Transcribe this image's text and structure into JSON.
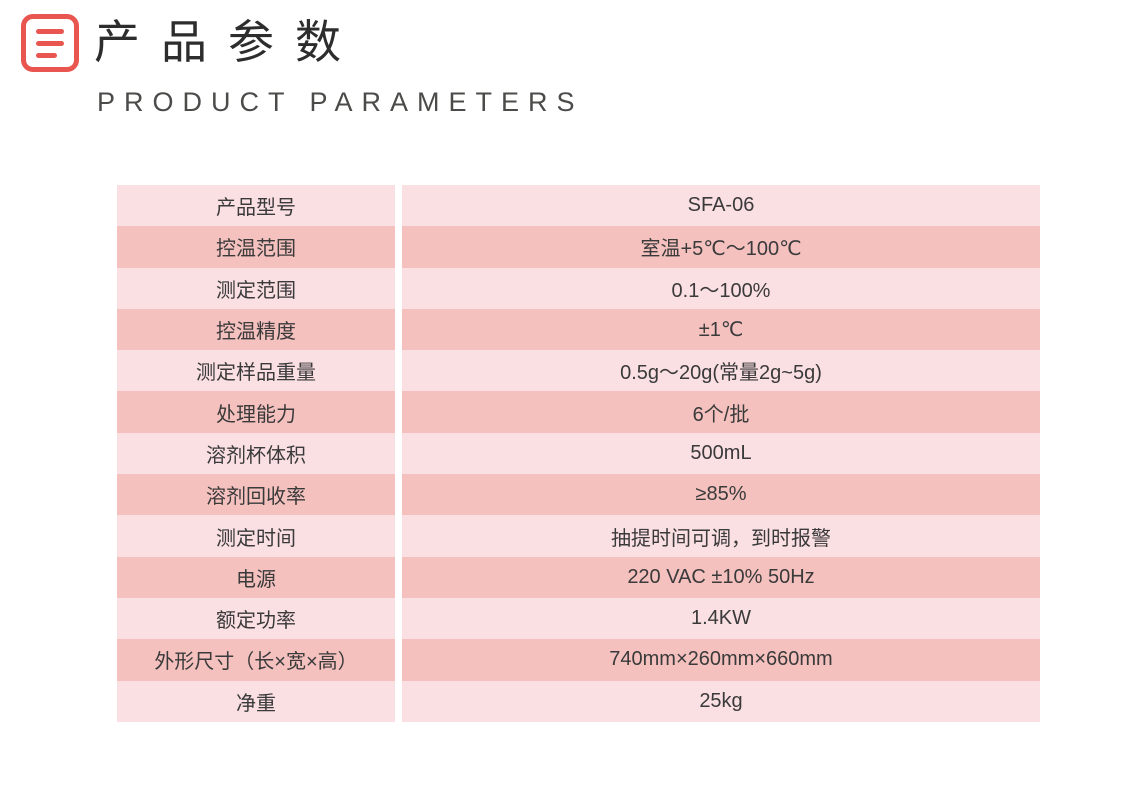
{
  "header": {
    "title": "产品参数",
    "subtitle": "PRODUCT PARAMETERS",
    "icon": "document-lines-icon"
  },
  "colors": {
    "accent_red": "#e8564f",
    "row_light": "#fadfe3",
    "row_dark": "#f4c1bf",
    "title_text": "#2d2d2d",
    "subtitle_text": "#4b4b49",
    "table_text": "#3a3a3a"
  },
  "table": {
    "rows": [
      {
        "label": "产品型号",
        "value": "SFA-06"
      },
      {
        "label": "控温范围",
        "value": "室温+5℃～100℃"
      },
      {
        "label": "测定范围",
        "value": "0.1～100%"
      },
      {
        "label": "控温精度",
        "value": "±1℃"
      },
      {
        "label": "测定样品重量",
        "value": "0.5g～20g(常量2g~5g)"
      },
      {
        "label": "处理能力",
        "value": "6个/批"
      },
      {
        "label": "溶剂杯体积",
        "value": "500mL"
      },
      {
        "label": "溶剂回收率",
        "value": "≥85%"
      },
      {
        "label": "测定时间",
        "value": "抽提时间可调，到时报警"
      },
      {
        "label": "电源",
        "value": "220 VAC ±10% 50Hz"
      },
      {
        "label": "额定功率",
        "value": "1.4KW"
      },
      {
        "label": "外形尺寸（长×宽×高）",
        "value": "740mm×260mm×660mm"
      },
      {
        "label": "净重",
        "value": "25kg"
      }
    ]
  }
}
